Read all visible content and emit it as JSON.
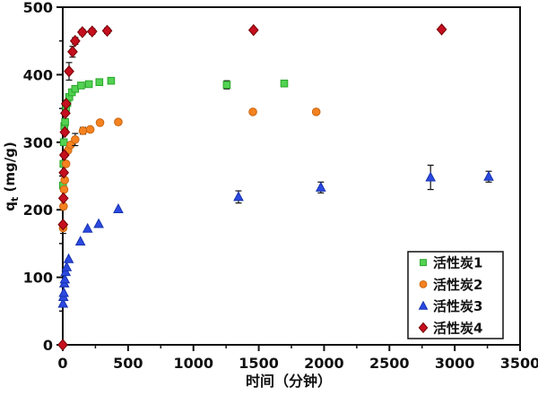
{
  "chart_data": {
    "type": "scatter",
    "title": "",
    "xlabel": "时间（分钟）",
    "ylabel": "qt (mg/g)",
    "ylabel_main": "q",
    "ylabel_sub": "t",
    "ylabel_units": " (mg/g)",
    "xlim": [
      0,
      3500
    ],
    "ylim": [
      0,
      500
    ],
    "x_major_ticks": [
      0,
      500,
      1000,
      1500,
      2000,
      2500,
      3000,
      3500
    ],
    "x_minor_step": 250,
    "y_major_ticks": [
      0,
      100,
      200,
      300,
      400,
      500
    ],
    "y_minor_step": 50,
    "grid": false,
    "legend_position": "lower right",
    "frame_color": "#111111",
    "background": "#ffffff",
    "error_bar_color": "#111111",
    "series": [
      {
        "name": "活性炭1",
        "marker": "square",
        "color": "#53d253",
        "edge": "#28a428",
        "points": [
          [
            2,
            236,
            0
          ],
          [
            5,
            268,
            0
          ],
          [
            8,
            300,
            0
          ],
          [
            12,
            324,
            0
          ],
          [
            18,
            330,
            4
          ],
          [
            25,
            351,
            4
          ],
          [
            35,
            358,
            4
          ],
          [
            50,
            367,
            4
          ],
          [
            70,
            374,
            4
          ],
          [
            95,
            379,
            4
          ],
          [
            140,
            384,
            4
          ],
          [
            200,
            386,
            4
          ],
          [
            280,
            389,
            4
          ],
          [
            370,
            391,
            4
          ],
          [
            1255,
            385,
            6
          ],
          [
            1695,
            387,
            4
          ]
        ]
      },
      {
        "name": "活性炭2",
        "marker": "circle",
        "color": "#f58220",
        "edge": "#c8650f",
        "points": [
          [
            3,
            173,
            8
          ],
          [
            6,
            205,
            0
          ],
          [
            10,
            230,
            0
          ],
          [
            15,
            244,
            0
          ],
          [
            25,
            268,
            0
          ],
          [
            40,
            288,
            0
          ],
          [
            60,
            296,
            0
          ],
          [
            95,
            304,
            9
          ],
          [
            155,
            317,
            5
          ],
          [
            210,
            319,
            0
          ],
          [
            285,
            329,
            0
          ],
          [
            425,
            330,
            0
          ],
          [
            1455,
            345,
            0
          ],
          [
            1940,
            345,
            0
          ]
        ]
      },
      {
        "name": "活性炭3",
        "marker": "triangle",
        "color": "#2b49e0",
        "edge": "#1733ad",
        "points": [
          [
            2,
            61,
            0
          ],
          [
            5,
            71,
            0
          ],
          [
            8,
            77,
            0
          ],
          [
            12,
            91,
            0
          ],
          [
            16,
            97,
            0
          ],
          [
            22,
            108,
            0
          ],
          [
            30,
            115,
            0
          ],
          [
            45,
            127,
            0
          ],
          [
            135,
            153,
            0
          ],
          [
            190,
            172,
            0
          ],
          [
            275,
            179,
            0
          ],
          [
            425,
            201,
            0
          ],
          [
            1345,
            219,
            9
          ],
          [
            1975,
            233,
            8
          ],
          [
            2815,
            248,
            18
          ],
          [
            3260,
            249,
            8
          ]
        ]
      },
      {
        "name": "活性炭4",
        "marker": "diamond",
        "color": "#c50f1f",
        "edge": "#740005",
        "points": [
          [
            0,
            0,
            0
          ],
          [
            2,
            178,
            0
          ],
          [
            5,
            217,
            0
          ],
          [
            8,
            255,
            0
          ],
          [
            12,
            281,
            0
          ],
          [
            16,
            315,
            0
          ],
          [
            20,
            343,
            0
          ],
          [
            26,
            357,
            0
          ],
          [
            48,
            405,
            13
          ],
          [
            75,
            434,
            8
          ],
          [
            95,
            450,
            5
          ],
          [
            150,
            463,
            4
          ],
          [
            225,
            464,
            4
          ],
          [
            340,
            465,
            4
          ],
          [
            1460,
            466,
            0
          ],
          [
            2900,
            467,
            0
          ]
        ]
      }
    ]
  }
}
